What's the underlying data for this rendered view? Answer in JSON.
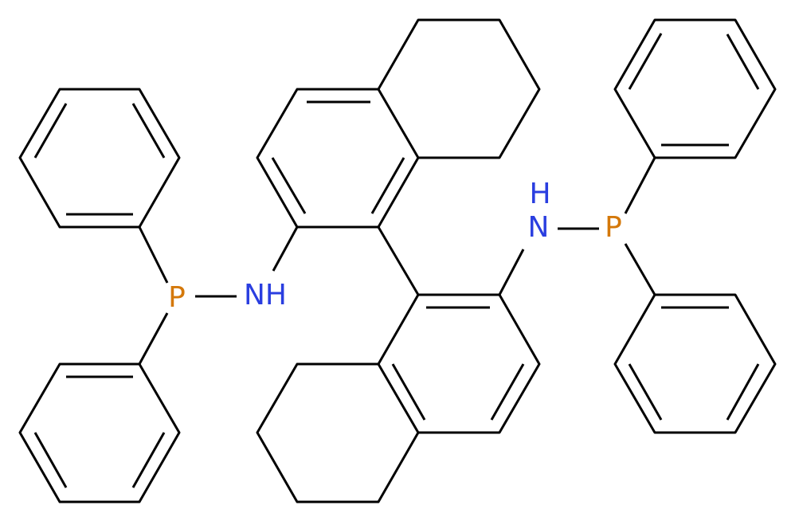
{
  "atoms": [
    {
      "label": "P"
    },
    {
      "label": "NH"
    },
    {
      "label": "H"
    },
    {
      "label": "N"
    },
    {
      "label": "P"
    }
  ]
}
